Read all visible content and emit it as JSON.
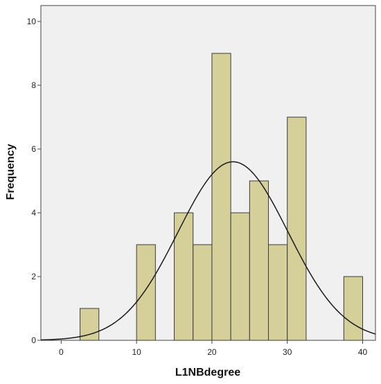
{
  "chart_data": {
    "type": "bar",
    "subtype": "histogram with normal curve",
    "title": "",
    "xlabel": "L1NBdegree",
    "ylabel": "Frequency",
    "xlim": [
      -2.7,
      41.7
    ],
    "ylim": [
      0,
      10.5
    ],
    "xticks": [
      0,
      10,
      20,
      30,
      40
    ],
    "yticks": [
      0,
      2,
      4,
      6,
      8,
      10
    ],
    "bin_width": 2.5,
    "bins": [
      {
        "start": 2.5,
        "end": 5.0,
        "count": 1
      },
      {
        "start": 10.0,
        "end": 12.5,
        "count": 3
      },
      {
        "start": 15.0,
        "end": 17.5,
        "count": 4
      },
      {
        "start": 17.5,
        "end": 20.0,
        "count": 3
      },
      {
        "start": 20.0,
        "end": 22.5,
        "count": 9
      },
      {
        "start": 22.5,
        "end": 25.0,
        "count": 4
      },
      {
        "start": 25.0,
        "end": 27.5,
        "count": 5
      },
      {
        "start": 27.5,
        "end": 30.0,
        "count": 3
      },
      {
        "start": 30.0,
        "end": 32.5,
        "count": 7
      },
      {
        "start": 37.5,
        "end": 40.0,
        "count": 2
      }
    ],
    "normal_curve": {
      "mean": 22.8,
      "peak": 5.6
    },
    "grid": false,
    "legend": "none",
    "colors": {
      "plot_background": "#f0f0f0",
      "bar_fill": "#d5d09a",
      "bar_stroke": "#3a3a3a",
      "curve": "#1a1a1a"
    }
  }
}
